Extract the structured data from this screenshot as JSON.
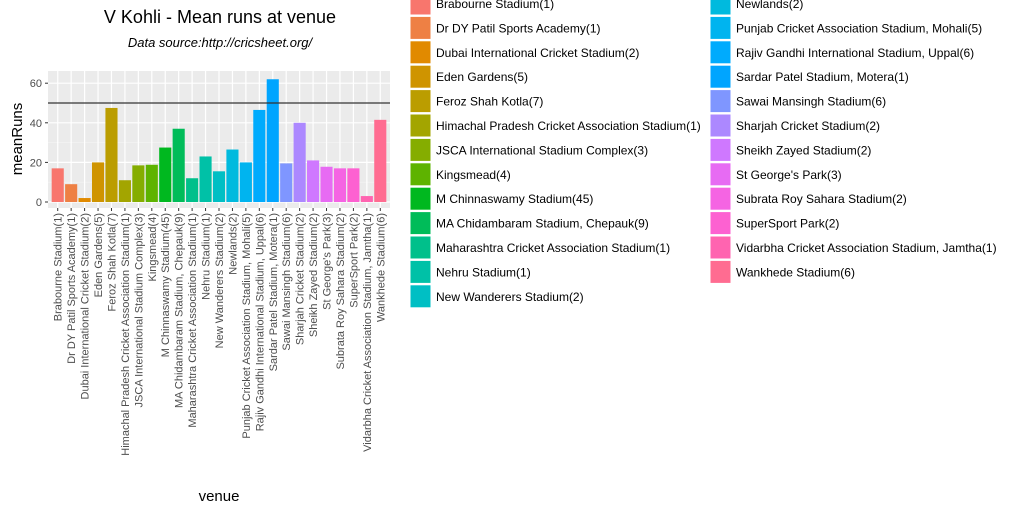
{
  "chart_data": {
    "type": "bar",
    "title": "V Kohli - Mean runs at venue",
    "subtitle": "Data source:http://cricsheet.org/",
    "xlabel": "venue",
    "ylabel": "meanRuns",
    "ylim": [
      0,
      65
    ],
    "yticks": [
      0,
      20,
      40,
      60
    ],
    "hline": 50,
    "grid": true,
    "legend_position": "right",
    "categories": [
      "Brabourne Stadium(1)",
      "Dr DY Patil Sports Academy(1)",
      "Dubai International Cricket Stadium(2)",
      "Eden Gardens(5)",
      "Feroz Shah Kotla(7)",
      "Himachal Pradesh Cricket Association Stadium(1)",
      "JSCA International Stadium Complex(3)",
      "Kingsmead(4)",
      "M Chinnaswamy Stadium(45)",
      "MA Chidambaram Stadium, Chepauk(9)",
      "Maharashtra Cricket Association Stadium(1)",
      "Nehru Stadium(1)",
      "New Wanderers Stadium(2)",
      "Newlands(2)",
      "Punjab Cricket Association Stadium, Mohali(5)",
      "Rajiv Gandhi International Stadium, Uppal(6)",
      "Sardar Patel Stadium, Motera(1)",
      "Sawai Mansingh Stadium(6)",
      "Sharjah Cricket Stadium(2)",
      "Sheikh Zayed Stadium(2)",
      "St George's Park(3)",
      "Subrata Roy Sahara Stadium(2)",
      "SuperSport Park(2)",
      "Vidarbha Cricket Association Stadium, Jamtha(1)",
      "Wankhede Stadium(6)"
    ],
    "values": [
      17,
      9,
      2,
      20,
      47.5,
      11,
      18.5,
      18.8,
      27.5,
      37,
      12,
      23,
      15.5,
      26.5,
      20,
      46.5,
      62,
      19.5,
      40,
      21,
      17.8,
      17,
      17,
      3,
      41.5
    ],
    "colors": [
      "#F8766D",
      "#EE8044",
      "#E18A00",
      "#CF9400",
      "#BB9D00",
      "#A3A500",
      "#85AD00",
      "#5EB300",
      "#00B81F",
      "#00BC59",
      "#00C08B",
      "#00C1A7",
      "#00BFC4",
      "#00BADE",
      "#00B4EF",
      "#00ABFD",
      "#00A5FF",
      "#7F96FF",
      "#AC88FF",
      "#CF78FF",
      "#E76BF3",
      "#F564E3",
      "#FD61D1",
      "#FF64B0",
      "#FF6C91"
    ]
  }
}
